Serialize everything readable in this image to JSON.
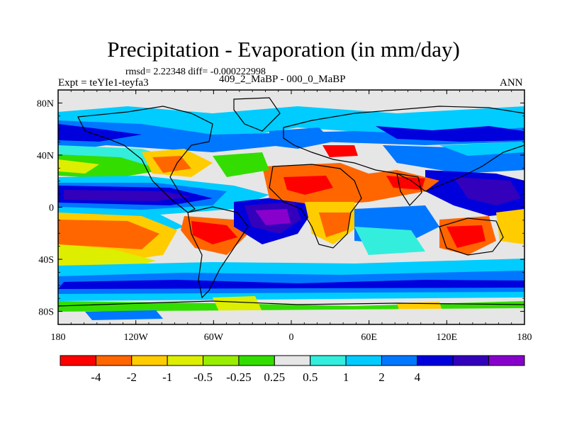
{
  "title": "Precipitation - Evaporation (in mm/day)",
  "stats": "rmsd= 2.22348 diff= -0.000222998",
  "experiment": "Expt = teYIe1-teyfa3",
  "period": "409_2_MaBP - 000_0_MaBP",
  "season": "ANN",
  "map": {
    "x_ticks": [
      "180",
      "120W",
      "60W",
      "0",
      "60E",
      "120E",
      "180"
    ],
    "y_ticks": [
      "80N",
      "40N",
      "0",
      "40S",
      "80S"
    ],
    "land_outline_color": "#000000",
    "neutral_color": "#e6e6e6"
  },
  "colorbar": {
    "colors": [
      "#ff0000",
      "#ff6600",
      "#ffcc00",
      "#ddee00",
      "#99ee00",
      "#33dd00",
      "#e6e6e6",
      "#33eedd",
      "#00ccff",
      "#0077ff",
      "#0000dd",
      "#3300bb",
      "#8800cc"
    ],
    "labels": [
      "-4",
      "-2",
      "-1",
      "-0.5",
      "-0.25",
      "0.25",
      "0.5",
      "1",
      "2",
      "4"
    ]
  }
}
